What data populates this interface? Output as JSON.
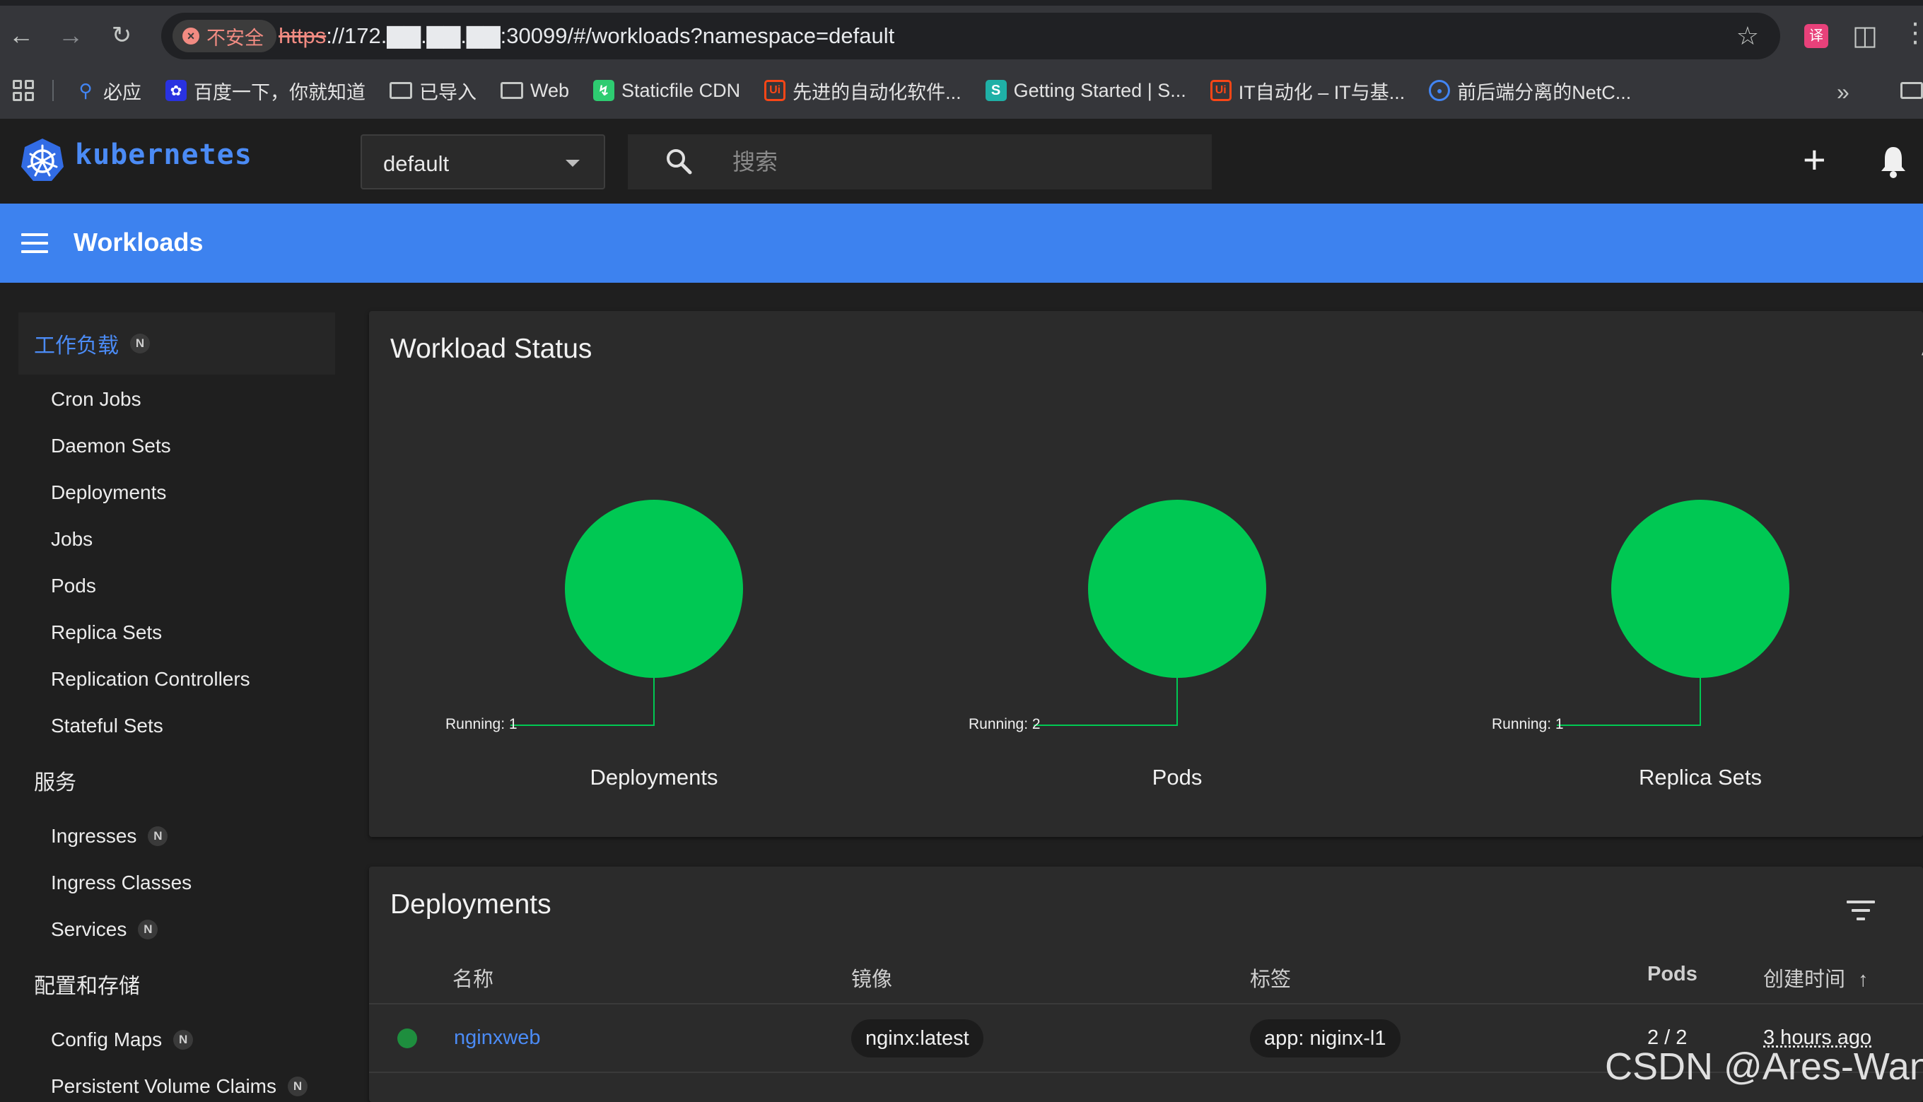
{
  "browser": {
    "security_label": "不安全",
    "url_scheme": "https",
    "url_rest": "://172.▇▇.▇▇.▇▇:30099/#/workloads?namespace=default",
    "bookmarks": [
      {
        "label": "必应",
        "icon": "search-icon",
        "color": "#4285f4"
      },
      {
        "label": "百度一下，你就知道",
        "icon": "baidu-icon",
        "color": "#2932e1"
      },
      {
        "label": "已导入",
        "icon": "folder-icon",
        "color": ""
      },
      {
        "label": "Web",
        "icon": "folder-icon",
        "color": ""
      },
      {
        "label": "Staticfile CDN",
        "icon": "staticfile-icon",
        "color": "#2ecc71"
      },
      {
        "label": "先进的自动化软件...",
        "icon": "uipath-icon",
        "color": "#fa4616"
      },
      {
        "label": "Getting Started | S...",
        "icon": "s-icon",
        "color": "#1fb0a6"
      },
      {
        "label": "IT自动化 – IT与基...",
        "icon": "uipath-icon",
        "color": "#fa4616"
      },
      {
        "label": "前后端分离的NetC...",
        "icon": "globe-icon",
        "color": "#4285f4"
      }
    ]
  },
  "toolbar": {
    "brand": "kubernetes",
    "namespace": "default",
    "search_placeholder": "搜索"
  },
  "title_bar": {
    "title": "Workloads"
  },
  "sidebar": {
    "groups": [
      {
        "label": "工作负载",
        "badge": "N",
        "items": [
          "Cron Jobs",
          "Daemon Sets",
          "Deployments",
          "Jobs",
          "Pods",
          "Replica Sets",
          "Replication Controllers",
          "Stateful Sets"
        ]
      },
      {
        "label": "服务",
        "items": [
          {
            "label": "Ingresses",
            "badge": "N"
          },
          {
            "label": "Ingress Classes"
          },
          {
            "label": "Services",
            "badge": "N"
          }
        ]
      },
      {
        "label": "配置和存储",
        "items": [
          {
            "label": "Config Maps",
            "badge": "N"
          },
          {
            "label": "Persistent Volume Claims",
            "badge": "N"
          }
        ]
      }
    ]
  },
  "workload_status": {
    "title": "Workload Status",
    "running_color": "#00c853",
    "charts": [
      {
        "name": "Deployments",
        "running_label": "Running: 1",
        "running": 1
      },
      {
        "name": "Pods",
        "running_label": "Running: 2",
        "running": 2
      },
      {
        "name": "Replica Sets",
        "running_label": "Running: 1",
        "running": 1
      }
    ]
  },
  "deployments": {
    "title": "Deployments",
    "columns": {
      "name": "名称",
      "image": "镜像",
      "labels": "标签",
      "pods": "Pods",
      "created": "创建时间"
    },
    "rows": [
      {
        "status": "running",
        "name": "nginxweb",
        "image": "nginx:latest",
        "label": "app: niginx-l1",
        "pods": "2 / 2",
        "created": "3 hours ago"
      }
    ]
  },
  "watermark": "CSDN @Ares-Wang"
}
